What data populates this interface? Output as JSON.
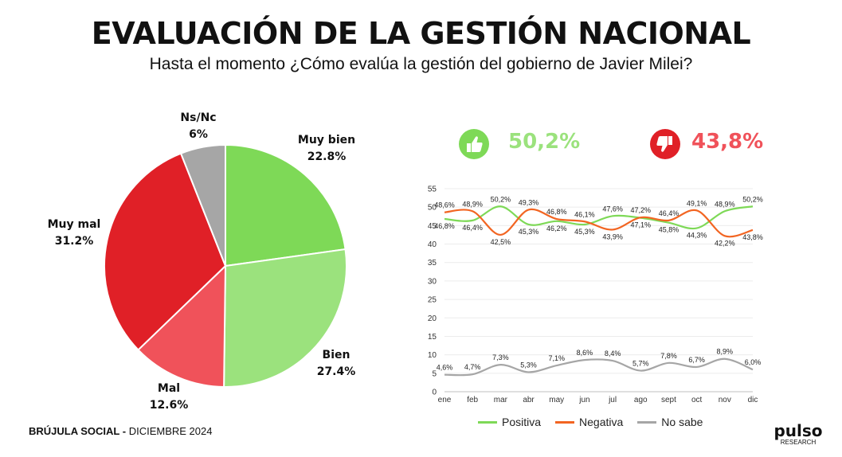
{
  "header": {
    "title": "EVALUACIÓN DE LA GESTIÓN NACIONAL",
    "subtitle": "Hasta el momento ¿Cómo evalúa la gestión del gobierno de Javier Milei?"
  },
  "kpis": {
    "positive": {
      "value": "50,2%",
      "icon": "thumbs-up-icon",
      "color": "#7ed957"
    },
    "negative": {
      "value": "43,8%",
      "icon": "thumbs-down-icon",
      "color": "#e02027"
    }
  },
  "chart_data": [
    {
      "type": "pie",
      "slices": [
        {
          "label": "Muy bien",
          "value": 22.8,
          "display": "22.8%",
          "color": "#7ed957"
        },
        {
          "label": "Bien",
          "value": 27.4,
          "display": "27.4%",
          "color": "#9be27d"
        },
        {
          "label": "Mal",
          "value": 12.6,
          "display": "12.6%",
          "color": "#f0525a"
        },
        {
          "label": "Muy mal",
          "value": 31.2,
          "display": "31.2%",
          "color": "#e02027"
        },
        {
          "label": "Ns/Nc",
          "value": 6,
          "display": "6%",
          "color": "#a6a6a6"
        }
      ]
    },
    {
      "type": "line",
      "categories": [
        "ene",
        "feb",
        "mar",
        "abr",
        "may",
        "jun",
        "jul",
        "ago",
        "sept",
        "oct",
        "nov",
        "dic"
      ],
      "ylim": [
        0,
        55
      ],
      "yticks": [
        "0",
        "5",
        "10",
        "15",
        "20",
        "25",
        "30",
        "35",
        "40",
        "45",
        "50",
        "55"
      ],
      "grid": true,
      "legend_position": "bottom",
      "series": [
        {
          "name": "Positiva",
          "color": "#7ed957",
          "values": [
            46.8,
            46.4,
            50.2,
            45.3,
            46.2,
            45.3,
            47.6,
            47.1,
            45.8,
            44.3,
            48.9,
            50.2
          ],
          "labels": [
            "46,8%",
            "46,4%",
            "50,2%",
            "45,3%",
            "46,2%",
            "45,3%",
            "47,6%",
            "47,1%",
            "45,8%",
            "44,3%",
            "48,9%",
            "50,2%"
          ]
        },
        {
          "name": "Negativa",
          "color": "#f26522",
          "values": [
            48.6,
            48.9,
            42.5,
            49.3,
            46.8,
            46.1,
            43.9,
            47.2,
            46.4,
            49.1,
            42.2,
            43.8
          ],
          "labels": [
            "48,6%",
            "48,9%",
            "42,5%",
            "49,3%",
            "46,8%",
            "46,1%",
            "43,9%",
            "47,2%",
            "46,4%",
            "49,1%",
            "42,2%",
            "43,8%"
          ]
        },
        {
          "name": "No sabe",
          "color": "#a6a6a6",
          "values": [
            4.6,
            4.7,
            7.3,
            5.3,
            7.1,
            8.6,
            8.4,
            5.7,
            7.8,
            6.7,
            8.9,
            6.0
          ],
          "labels": [
            "4,6%",
            "4,7%",
            "7,3%",
            "5,3%",
            "7,1%",
            "8,6%",
            "8,4%",
            "5,7%",
            "7,8%",
            "6,7%",
            "8,9%",
            "6,0%"
          ]
        }
      ]
    }
  ],
  "footer": {
    "source_bold": "BRÚJULA SOCIAL -",
    "source_date": "DICIEMBRE 2024",
    "brand_name": "pulso",
    "brand_sub": "RESEARCH"
  }
}
